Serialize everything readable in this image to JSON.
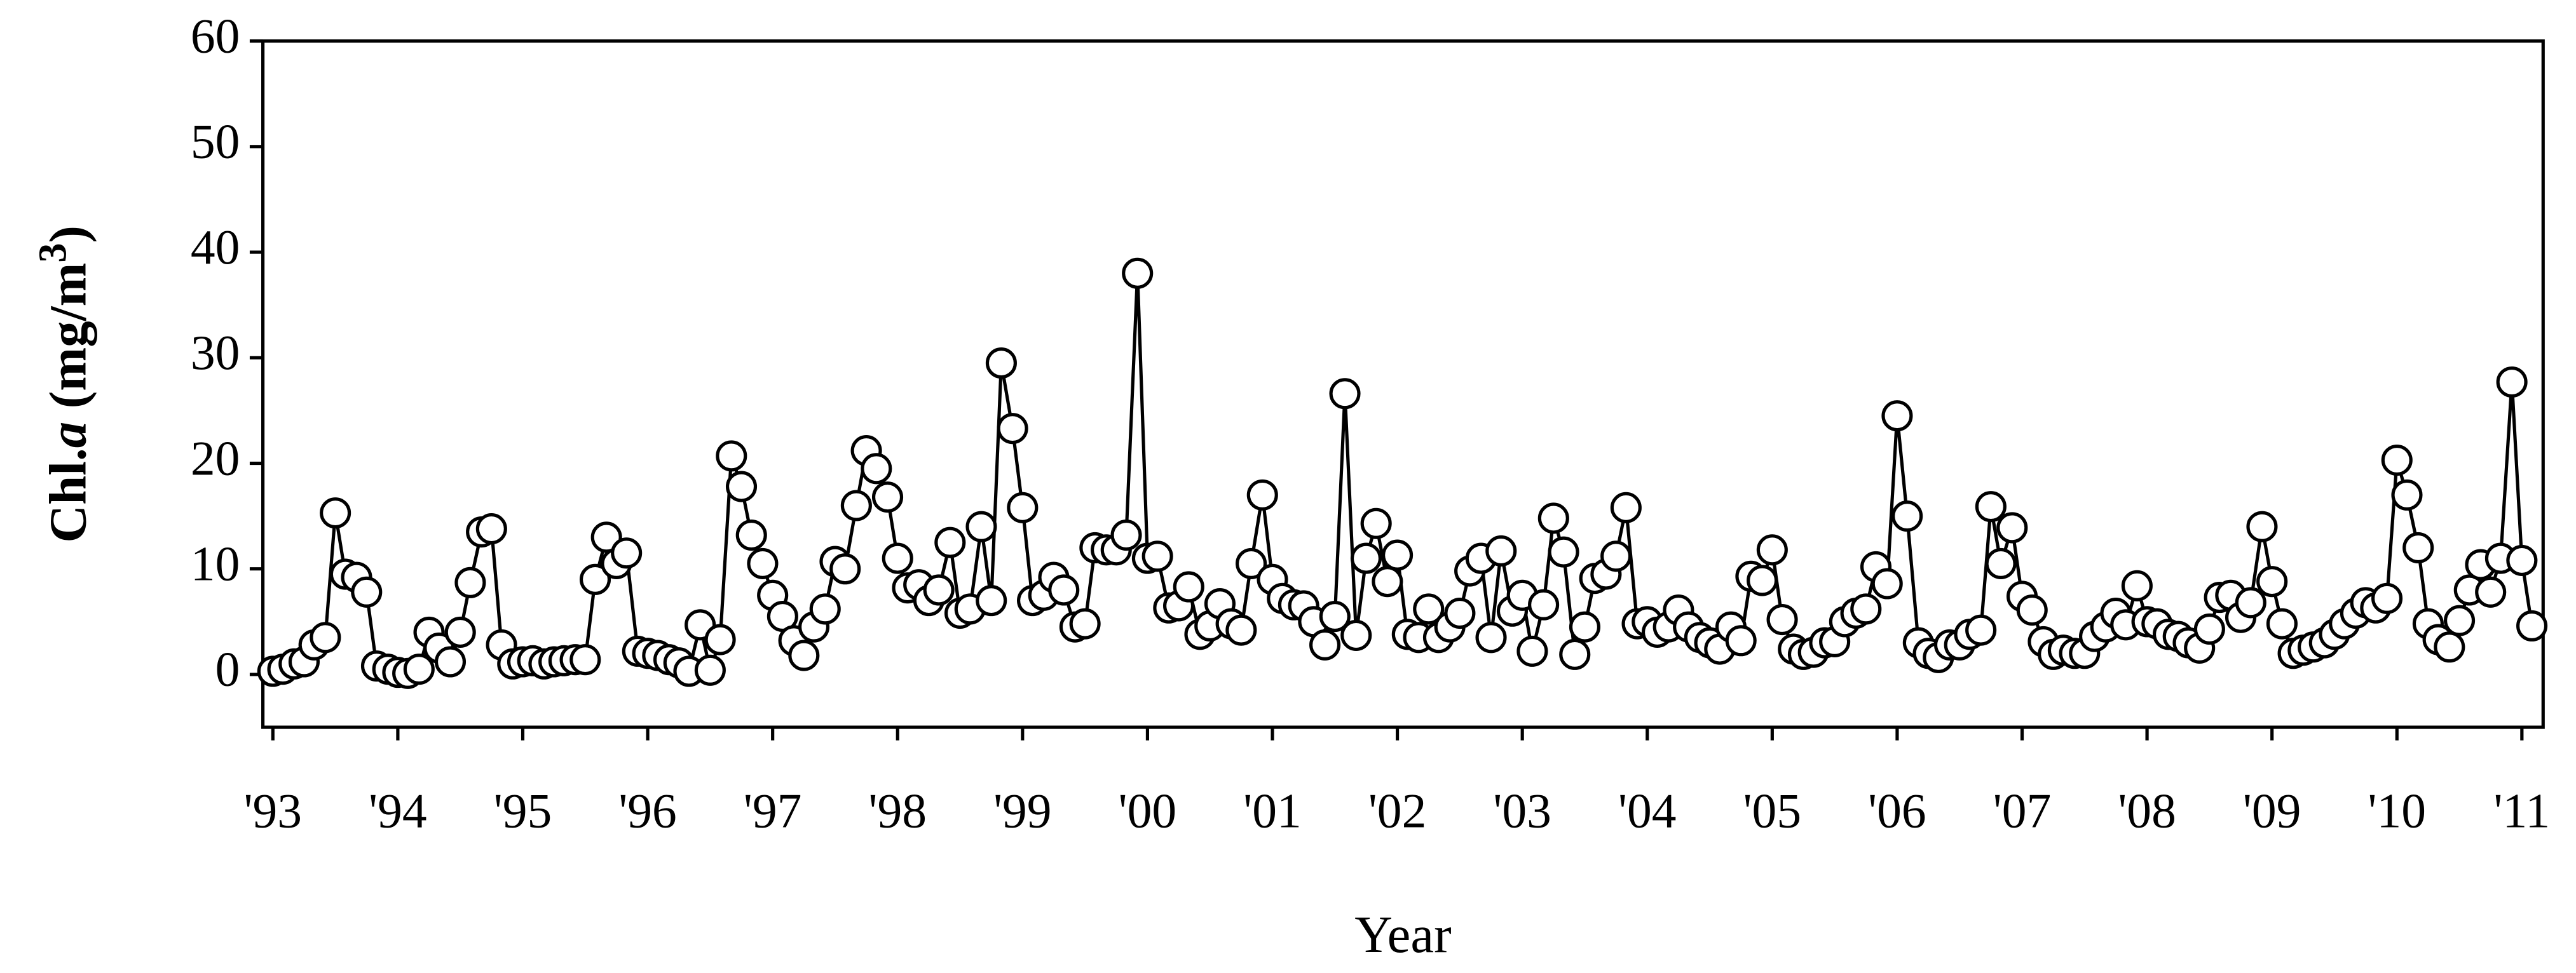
{
  "chart_data": {
    "type": "line",
    "xlabel": "Year",
    "ylabel": [
      "Chl.",
      "a",
      " (mg/m",
      "3",
      ")"
    ],
    "color": "#000000",
    "marker_fill": "#ffffff",
    "xlim": [
      1992.92,
      2011.17
    ],
    "ylim": [
      -5,
      60
    ],
    "yticks": [
      0,
      10,
      20,
      30,
      40,
      50,
      60
    ],
    "xticks": [
      {
        "value": 1993,
        "label": "'93"
      },
      {
        "value": 1994,
        "label": "'94"
      },
      {
        "value": 1995,
        "label": "'95"
      },
      {
        "value": 1996,
        "label": "'96"
      },
      {
        "value": 1997,
        "label": "'97"
      },
      {
        "value": 1998,
        "label": "'98"
      },
      {
        "value": 1999,
        "label": "'99"
      },
      {
        "value": 2000,
        "label": "'00"
      },
      {
        "value": 2001,
        "label": "'01"
      },
      {
        "value": 2002,
        "label": "'02"
      },
      {
        "value": 2003,
        "label": "'03"
      },
      {
        "value": 2004,
        "label": "'04"
      },
      {
        "value": 2005,
        "label": "'05"
      },
      {
        "value": 2006,
        "label": "'06"
      },
      {
        "value": 2007,
        "label": "'07"
      },
      {
        "value": 2008,
        "label": "'08"
      },
      {
        "value": 2009,
        "label": "'09"
      },
      {
        "value": 2010,
        "label": "'10"
      },
      {
        "value": 2011,
        "label": "'11"
      }
    ],
    "x": [
      1993.0,
      1993.08,
      1993.17,
      1993.25,
      1993.33,
      1993.42,
      1993.5,
      1993.58,
      1993.67,
      1993.75,
      1993.83,
      1993.92,
      1994.0,
      1994.08,
      1994.17,
      1994.25,
      1994.33,
      1994.42,
      1994.5,
      1994.58,
      1994.67,
      1994.75,
      1994.83,
      1994.92,
      1995.0,
      1995.08,
      1995.17,
      1995.25,
      1995.33,
      1995.42,
      1995.5,
      1995.58,
      1995.67,
      1995.75,
      1995.83,
      1995.92,
      1996.0,
      1996.08,
      1996.17,
      1996.25,
      1996.33,
      1996.42,
      1996.5,
      1996.58,
      1996.67,
      1996.75,
      1996.83,
      1996.92,
      1997.0,
      1997.08,
      1997.17,
      1997.25,
      1997.33,
      1997.42,
      1997.5,
      1997.58,
      1997.67,
      1997.75,
      1997.83,
      1997.92,
      1998.0,
      1998.08,
      1998.17,
      1998.25,
      1998.33,
      1998.42,
      1998.5,
      1998.58,
      1998.67,
      1998.75,
      1998.83,
      1998.92,
      1999.0,
      1999.08,
      1999.17,
      1999.25,
      1999.33,
      1999.42,
      1999.5,
      1999.58,
      1999.67,
      1999.75,
      1999.83,
      1999.92,
      2000.0,
      2000.08,
      2000.17,
      2000.25,
      2000.33,
      2000.42,
      2000.5,
      2000.58,
      2000.67,
      2000.75,
      2000.83,
      2000.92,
      2001.0,
      2001.08,
      2001.17,
      2001.25,
      2001.33,
      2001.42,
      2001.5,
      2001.58,
      2001.67,
      2001.75,
      2001.83,
      2001.92,
      2002.0,
      2002.08,
      2002.17,
      2002.25,
      2002.33,
      2002.42,
      2002.5,
      2002.58,
      2002.67,
      2002.75,
      2002.83,
      2002.92,
      2003.0,
      2003.08,
      2003.17,
      2003.25,
      2003.33,
      2003.42,
      2003.5,
      2003.58,
      2003.67,
      2003.75,
      2003.83,
      2003.92,
      2004.0,
      2004.08,
      2004.17,
      2004.25,
      2004.33,
      2004.42,
      2004.5,
      2004.58,
      2004.67,
      2004.75,
      2004.83,
      2004.92,
      2005.0,
      2005.08,
      2005.17,
      2005.25,
      2005.33,
      2005.42,
      2005.5,
      2005.58,
      2005.67,
      2005.75,
      2005.83,
      2005.92,
      2006.0,
      2006.08,
      2006.17,
      2006.25,
      2006.33,
      2006.42,
      2006.5,
      2006.58,
      2006.67,
      2006.75,
      2006.83,
      2006.92,
      2007.0,
      2007.08,
      2007.17,
      2007.25,
      2007.33,
      2007.42,
      2007.5,
      2007.58,
      2007.67,
      2007.75,
      2007.83,
      2007.92,
      2008.0,
      2008.08,
      2008.17,
      2008.25,
      2008.33,
      2008.42,
      2008.5,
      2008.58,
      2008.67,
      2008.75,
      2008.83,
      2008.92,
      2009.0,
      2009.08,
      2009.17,
      2009.25,
      2009.33,
      2009.42,
      2009.5,
      2009.58,
      2009.67,
      2009.75,
      2009.83,
      2009.92,
      2010.0,
      2010.08,
      2010.17,
      2010.25,
      2010.33,
      2010.42,
      2010.5,
      2010.58,
      2010.67,
      2010.75,
      2010.83,
      2010.92,
      2011.0,
      2011.08
    ],
    "values": [
      0.3,
      0.5,
      1,
      1.2,
      2.8,
      3.5,
      15.3,
      9.5,
      9.2,
      7.8,
      0.8,
      0.5,
      0.2,
      0.1,
      0.5,
      4,
      2.5,
      1.2,
      4,
      8.7,
      13.5,
      13.8,
      2.8,
      1,
      1.2,
      1.3,
      1,
      1.2,
      1.3,
      1.4,
      1.4,
      9,
      13,
      10.5,
      11.5,
      2.2,
      2,
      1.8,
      1.4,
      1.1,
      0.3,
      4.7,
      0.4,
      3.3,
      20.7,
      17.8,
      13.2,
      10.5,
      7.5,
      5.5,
      3.2,
      1.8,
      4.5,
      6.2,
      10.7,
      10,
      16,
      21.2,
      19.5,
      16.8,
      11,
      8.2,
      8.5,
      7,
      8,
      12.5,
      5.8,
      6.2,
      14,
      7,
      29.5,
      23.3,
      15.8,
      7,
      7.5,
      9.2,
      8,
      4.5,
      4.8,
      12,
      11.8,
      11.8,
      13.2,
      38,
      11,
      11.2,
      6.3,
      6.5,
      8.3,
      3.8,
      4.6,
      6.7,
      4.8,
      4.2,
      10.5,
      17,
      9,
      7.2,
      6.6,
      6.5,
      5,
      2.8,
      5.5,
      26.6,
      3.7,
      11,
      14.3,
      8.8,
      11.3,
      3.8,
      3.5,
      6.2,
      3.5,
      4.5,
      5.8,
      9.8,
      11,
      3.5,
      11.7,
      6,
      7.5,
      2.2,
      6.6,
      14.8,
      11.6,
      1.9,
      4.5,
      9.1,
      9.5,
      11.2,
      15.8,
      4.8,
      5,
      4,
      4.5,
      6.1,
      4.5,
      3.5,
      3,
      2.4,
      4.5,
      3.2,
      9.3,
      8.9,
      11.8,
      5.2,
      2.4,
      1.9,
      2.1,
      3,
      3.1,
      5,
      5.8,
      6.2,
      10.2,
      8.6,
      24.5,
      15,
      3,
      2,
      1.6,
      2.8,
      2.8,
      3.8,
      4.2,
      15.9,
      10.5,
      13.9,
      7.4,
      6.1,
      3.1,
      1.9,
      2.3,
      2,
      2,
      3.6,
      4.5,
      5.8,
      4.7,
      8.4,
      5,
      4.8,
      3.8,
      3.6,
      3,
      2.5,
      4.3,
      7.3,
      7.5,
      5.4,
      6.8,
      14,
      8.8,
      4.8,
      2,
      2.3,
      2.6,
      3,
      3.8,
      4.8,
      5.8,
      6.8,
      6.3,
      7.2,
      20.3,
      17,
      12,
      4.8,
      3.3,
      2.6,
      5.1,
      8,
      10.4,
      7.8,
      11,
      27.7,
      10.8,
      4.6
    ]
  }
}
